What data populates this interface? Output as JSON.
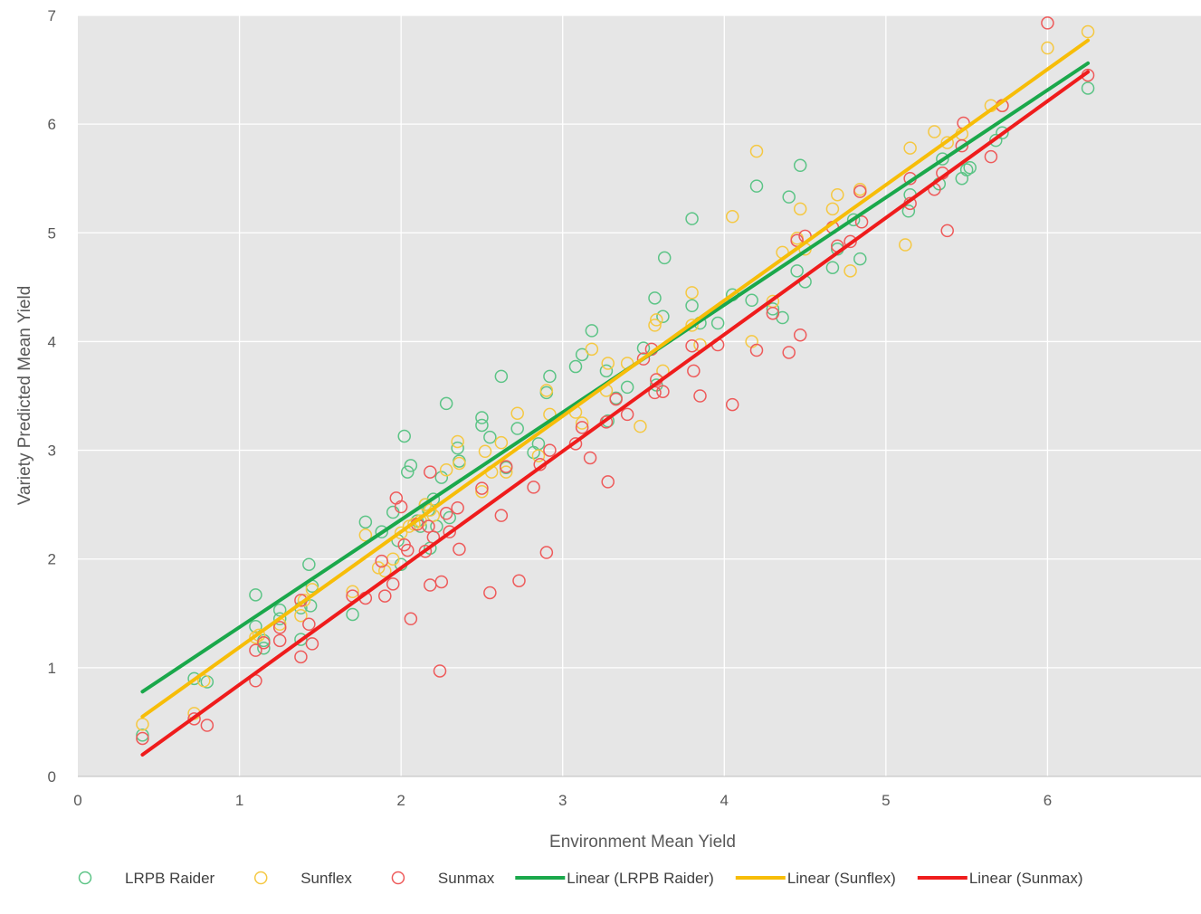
{
  "chart_data": {
    "type": "scatter",
    "title": "",
    "xlabel": "Environment Mean Yield",
    "ylabel": "Variety Predicted Mean Yield",
    "xlim": [
      0,
      7
    ],
    "ylim": [
      0,
      7
    ],
    "xticks": [
      0,
      1,
      2,
      3,
      4,
      5,
      6
    ],
    "yticks": [
      0,
      1,
      2,
      3,
      4,
      5,
      6,
      7
    ],
    "grid": true,
    "legend_position": "bottom",
    "series": [
      {
        "name": "LRPB Raider",
        "color": "#5cc486",
        "marker": "open-circle",
        "points": [
          [
            0.4,
            0.38
          ],
          [
            0.72,
            0.9
          ],
          [
            0.8,
            0.87
          ],
          [
            1.1,
            1.38
          ],
          [
            1.1,
            1.67
          ],
          [
            1.15,
            1.18
          ],
          [
            1.15,
            1.25
          ],
          [
            1.25,
            1.45
          ],
          [
            1.25,
            1.53
          ],
          [
            1.38,
            1.26
          ],
          [
            1.38,
            1.55
          ],
          [
            1.43,
            1.95
          ],
          [
            1.44,
            1.57
          ],
          [
            1.45,
            1.75
          ],
          [
            1.7,
            1.49
          ],
          [
            1.78,
            2.34
          ],
          [
            1.88,
            2.25
          ],
          [
            1.95,
            2.43
          ],
          [
            1.98,
            2.17
          ],
          [
            2.0,
            1.95
          ],
          [
            2.02,
            3.13
          ],
          [
            2.04,
            2.8
          ],
          [
            2.06,
            2.86
          ],
          [
            2.1,
            2.35
          ],
          [
            2.12,
            2.3
          ],
          [
            2.15,
            2.5
          ],
          [
            2.17,
            2.45
          ],
          [
            2.18,
            2.1
          ],
          [
            2.2,
            2.55
          ],
          [
            2.22,
            2.3
          ],
          [
            2.25,
            2.75
          ],
          [
            2.28,
            3.43
          ],
          [
            2.3,
            2.38
          ],
          [
            2.35,
            3.02
          ],
          [
            2.36,
            2.9
          ],
          [
            2.5,
            3.3
          ],
          [
            2.5,
            3.23
          ],
          [
            2.55,
            3.12
          ],
          [
            2.62,
            3.68
          ],
          [
            2.65,
            2.84
          ],
          [
            2.72,
            3.2
          ],
          [
            2.82,
            2.98
          ],
          [
            2.9,
            3.53
          ],
          [
            2.92,
            3.68
          ],
          [
            2.85,
            3.06
          ],
          [
            3.08,
            3.77
          ],
          [
            3.12,
            3.88
          ],
          [
            3.18,
            4.1
          ],
          [
            3.27,
            3.73
          ],
          [
            3.28,
            3.27
          ],
          [
            3.33,
            3.48
          ],
          [
            3.4,
            3.58
          ],
          [
            3.5,
            3.94
          ],
          [
            3.57,
            4.4
          ],
          [
            3.58,
            3.6
          ],
          [
            3.62,
            4.23
          ],
          [
            3.63,
            4.77
          ],
          [
            3.8,
            5.13
          ],
          [
            3.8,
            4.33
          ],
          [
            3.85,
            4.17
          ],
          [
            3.96,
            4.17
          ],
          [
            4.05,
            4.43
          ],
          [
            4.17,
            4.38
          ],
          [
            4.2,
            5.43
          ],
          [
            4.3,
            4.3
          ],
          [
            4.36,
            4.22
          ],
          [
            4.4,
            5.33
          ],
          [
            4.45,
            4.65
          ],
          [
            4.47,
            5.62
          ],
          [
            4.5,
            4.55
          ],
          [
            4.67,
            4.68
          ],
          [
            4.7,
            4.85
          ],
          [
            4.8,
            5.12
          ],
          [
            4.84,
            4.76
          ],
          [
            5.14,
            5.2
          ],
          [
            5.15,
            5.35
          ],
          [
            5.33,
            5.45
          ],
          [
            5.35,
            5.68
          ],
          [
            5.47,
            5.5
          ],
          [
            5.5,
            5.58
          ],
          [
            5.52,
            5.6
          ],
          [
            5.68,
            5.85
          ],
          [
            5.72,
            5.92
          ],
          [
            6.25,
            6.33
          ]
        ]
      },
      {
        "name": "Sunflex",
        "color": "#f5c842",
        "marker": "open-circle",
        "points": [
          [
            0.4,
            0.48
          ],
          [
            0.72,
            0.58
          ],
          [
            0.78,
            0.88
          ],
          [
            1.1,
            1.28
          ],
          [
            1.12,
            1.3
          ],
          [
            1.25,
            1.4
          ],
          [
            1.38,
            1.48
          ],
          [
            1.4,
            1.62
          ],
          [
            1.45,
            1.72
          ],
          [
            1.7,
            1.7
          ],
          [
            1.78,
            2.22
          ],
          [
            1.86,
            1.92
          ],
          [
            1.9,
            1.89
          ],
          [
            1.95,
            2.0
          ],
          [
            2.0,
            2.24
          ],
          [
            2.05,
            2.3
          ],
          [
            2.08,
            2.32
          ],
          [
            2.12,
            2.35
          ],
          [
            2.15,
            2.5
          ],
          [
            2.18,
            2.45
          ],
          [
            2.2,
            2.4
          ],
          [
            2.28,
            2.82
          ],
          [
            2.35,
            3.08
          ],
          [
            2.36,
            2.88
          ],
          [
            2.5,
            2.62
          ],
          [
            2.52,
            2.99
          ],
          [
            2.56,
            2.8
          ],
          [
            2.62,
            3.07
          ],
          [
            2.65,
            2.8
          ],
          [
            2.72,
            3.34
          ],
          [
            2.9,
            3.55
          ],
          [
            2.92,
            3.33
          ],
          [
            2.85,
            2.95
          ],
          [
            3.08,
            3.35
          ],
          [
            3.12,
            3.25
          ],
          [
            3.18,
            3.93
          ],
          [
            3.27,
            3.55
          ],
          [
            3.28,
            3.8
          ],
          [
            3.4,
            3.8
          ],
          [
            3.48,
            3.22
          ],
          [
            3.57,
            4.15
          ],
          [
            3.58,
            4.2
          ],
          [
            3.62,
            3.73
          ],
          [
            3.8,
            4.45
          ],
          [
            3.8,
            4.15
          ],
          [
            3.85,
            3.97
          ],
          [
            4.05,
            5.15
          ],
          [
            4.17,
            4.0
          ],
          [
            4.2,
            5.75
          ],
          [
            4.3,
            4.37
          ],
          [
            4.36,
            4.82
          ],
          [
            4.45,
            4.95
          ],
          [
            4.47,
            5.22
          ],
          [
            4.5,
            4.85
          ],
          [
            4.67,
            5.22
          ],
          [
            4.7,
            5.35
          ],
          [
            4.78,
            4.65
          ],
          [
            4.84,
            5.4
          ],
          [
            5.12,
            4.89
          ],
          [
            5.15,
            5.78
          ],
          [
            5.3,
            5.93
          ],
          [
            5.38,
            5.83
          ],
          [
            5.47,
            5.91
          ],
          [
            5.65,
            6.17
          ],
          [
            5.72,
            6.17
          ],
          [
            6.0,
            6.7
          ],
          [
            6.25,
            6.85
          ]
        ]
      },
      {
        "name": "Sunmax",
        "color": "#ee5a5a",
        "marker": "open-circle",
        "points": [
          [
            0.4,
            0.35
          ],
          [
            0.72,
            0.53
          ],
          [
            0.8,
            0.47
          ],
          [
            1.1,
            0.88
          ],
          [
            1.1,
            1.16
          ],
          [
            1.15,
            1.23
          ],
          [
            1.25,
            1.25
          ],
          [
            1.25,
            1.37
          ],
          [
            1.38,
            1.1
          ],
          [
            1.38,
            1.62
          ],
          [
            1.43,
            1.4
          ],
          [
            1.45,
            1.22
          ],
          [
            1.7,
            1.66
          ],
          [
            1.78,
            1.64
          ],
          [
            1.88,
            1.98
          ],
          [
            1.9,
            1.66
          ],
          [
            1.95,
            1.77
          ],
          [
            1.97,
            2.56
          ],
          [
            2.0,
            2.48
          ],
          [
            2.02,
            2.13
          ],
          [
            2.04,
            2.08
          ],
          [
            2.06,
            1.45
          ],
          [
            2.1,
            2.32
          ],
          [
            2.15,
            2.07
          ],
          [
            2.17,
            2.3
          ],
          [
            2.18,
            1.76
          ],
          [
            2.18,
            2.8
          ],
          [
            2.2,
            2.2
          ],
          [
            2.24,
            0.97
          ],
          [
            2.25,
            1.79
          ],
          [
            2.28,
            2.42
          ],
          [
            2.3,
            2.25
          ],
          [
            2.35,
            2.47
          ],
          [
            2.36,
            2.09
          ],
          [
            2.5,
            2.65
          ],
          [
            2.55,
            1.69
          ],
          [
            2.62,
            2.4
          ],
          [
            2.65,
            2.85
          ],
          [
            2.73,
            1.8
          ],
          [
            2.82,
            2.66
          ],
          [
            2.86,
            2.87
          ],
          [
            2.9,
            2.06
          ],
          [
            2.92,
            3.0
          ],
          [
            3.08,
            3.06
          ],
          [
            3.12,
            3.21
          ],
          [
            3.17,
            2.93
          ],
          [
            3.27,
            3.26
          ],
          [
            3.28,
            2.71
          ],
          [
            3.33,
            3.47
          ],
          [
            3.4,
            3.33
          ],
          [
            3.5,
            3.84
          ],
          [
            3.55,
            3.93
          ],
          [
            3.57,
            3.53
          ],
          [
            3.58,
            3.65
          ],
          [
            3.62,
            3.54
          ],
          [
            3.8,
            3.96
          ],
          [
            3.81,
            3.73
          ],
          [
            3.85,
            3.5
          ],
          [
            3.96,
            3.97
          ],
          [
            4.05,
            3.42
          ],
          [
            4.2,
            3.92
          ],
          [
            4.3,
            4.26
          ],
          [
            4.4,
            3.9
          ],
          [
            4.45,
            4.93
          ],
          [
            4.47,
            4.06
          ],
          [
            4.5,
            4.97
          ],
          [
            4.67,
            5.05
          ],
          [
            4.7,
            4.88
          ],
          [
            4.78,
            4.92
          ],
          [
            4.84,
            5.38
          ],
          [
            4.85,
            5.1
          ],
          [
            5.15,
            5.27
          ],
          [
            5.15,
            5.5
          ],
          [
            5.3,
            5.4
          ],
          [
            5.35,
            5.55
          ],
          [
            5.38,
            5.02
          ],
          [
            5.47,
            5.8
          ],
          [
            5.48,
            6.01
          ],
          [
            5.65,
            5.7
          ],
          [
            5.72,
            6.17
          ],
          [
            6.0,
            6.93
          ],
          [
            6.25,
            6.45
          ]
        ]
      }
    ],
    "trendlines": [
      {
        "name": "Linear (LRPB Raider)",
        "color": "#1aa84b",
        "x": [
          0.4,
          6.25
        ],
        "y": [
          0.78,
          6.56
        ]
      },
      {
        "name": "Linear (Sunflex)",
        "color": "#f7bd08",
        "x": [
          0.4,
          6.25
        ],
        "y": [
          0.55,
          6.77
        ]
      },
      {
        "name": "Linear (Sunmax)",
        "color": "#ef1c1c",
        "x": [
          0.4,
          6.25
        ],
        "y": [
          0.2,
          6.48
        ]
      }
    ]
  }
}
